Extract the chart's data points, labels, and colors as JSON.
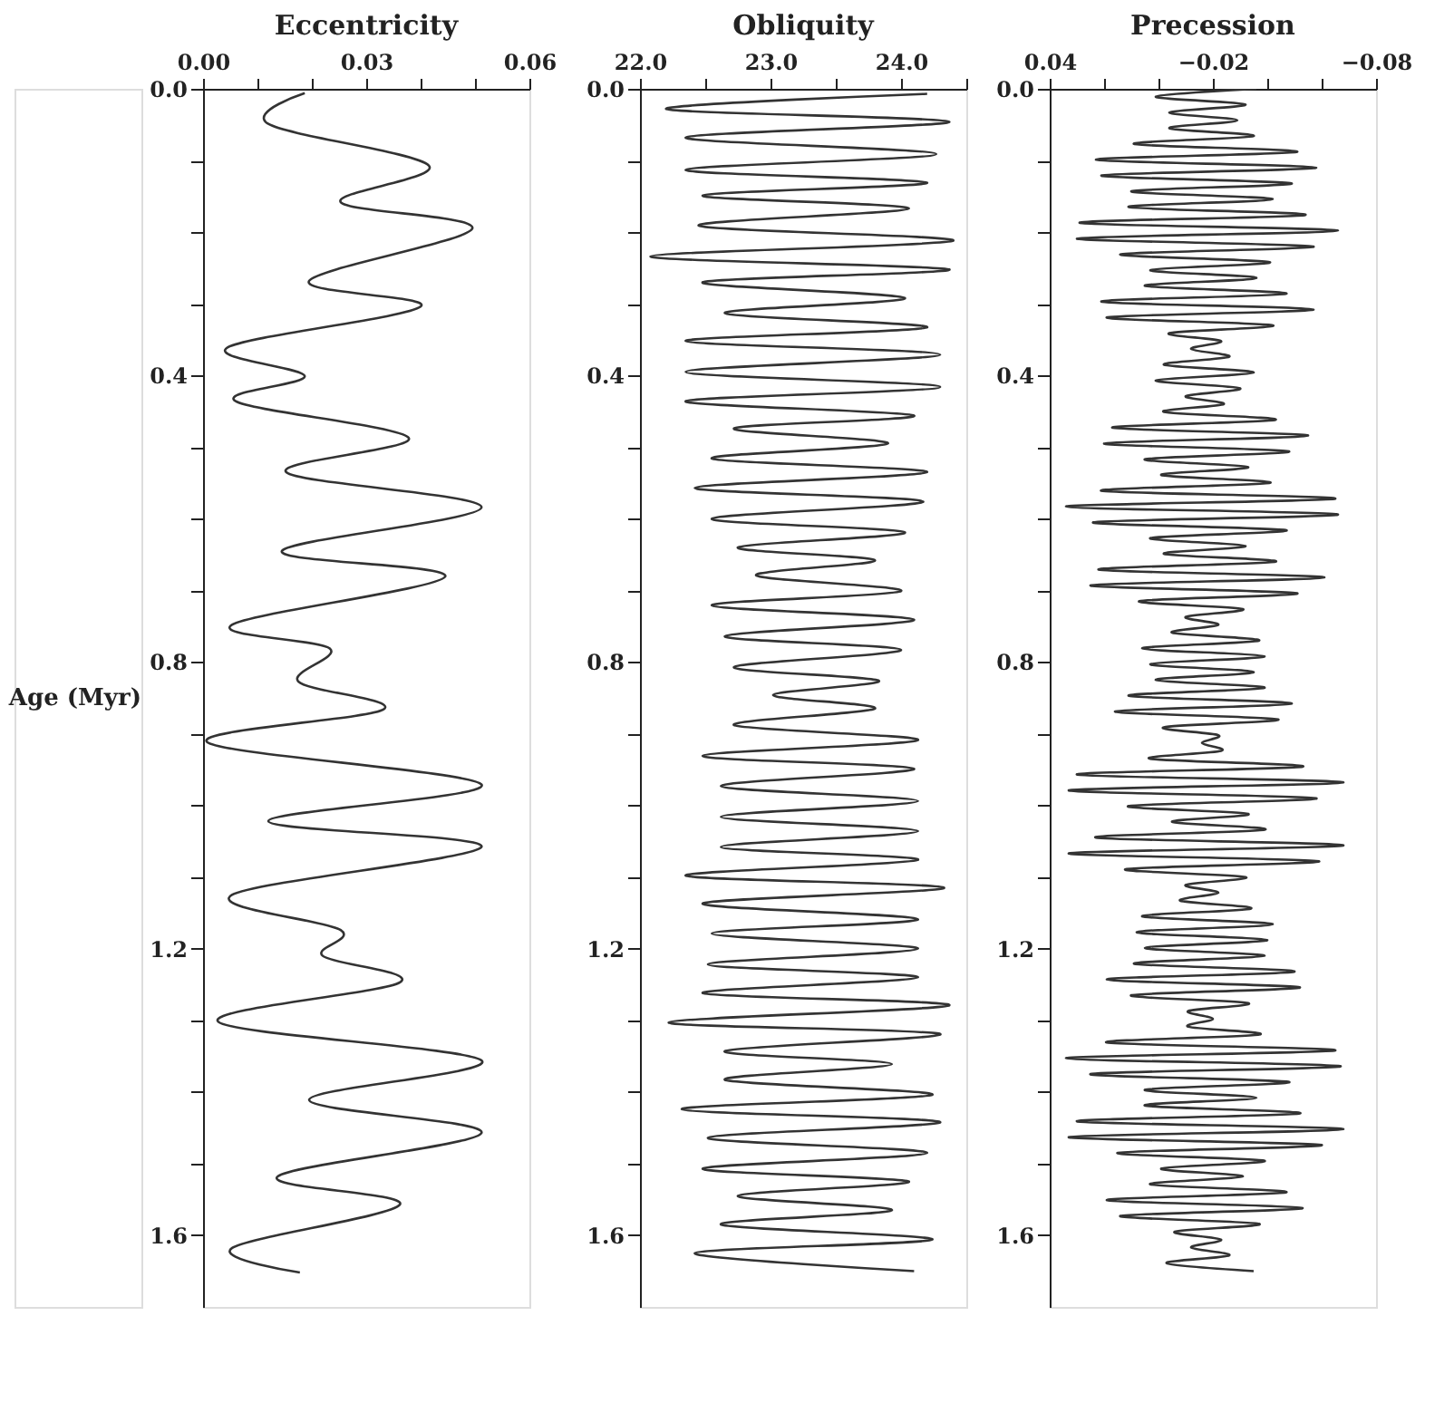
{
  "chart_data": [
    {
      "type": "line",
      "title": "Eccentricity",
      "ylabel": "Age (Myr)",
      "xlim": [
        0.0,
        0.06
      ],
      "xticks": [
        {
          "value": 0.0,
          "label": "0.00"
        },
        {
          "value": 0.01,
          "label": null
        },
        {
          "value": 0.02,
          "label": null
        },
        {
          "value": 0.03,
          "label": "0.03"
        },
        {
          "value": 0.04,
          "label": null
        },
        {
          "value": 0.05,
          "label": null
        },
        {
          "value": 0.06,
          "label": "0.06"
        }
      ],
      "ylim": [
        1.7,
        0.0
      ],
      "yticks": [
        {
          "value": 0.0,
          "label": "0.0"
        },
        {
          "value": 0.1,
          "label": null
        },
        {
          "value": 0.2,
          "label": null
        },
        {
          "value": 0.3,
          "label": null
        },
        {
          "value": 0.4,
          "label": "0.4"
        },
        {
          "value": 0.5,
          "label": null
        },
        {
          "value": 0.6,
          "label": null
        },
        {
          "value": 0.7,
          "label": null
        },
        {
          "value": 0.8,
          "label": "0.8"
        },
        {
          "value": 0.9,
          "label": null
        },
        {
          "value": 1.0,
          "label": null
        },
        {
          "value": 1.1,
          "label": null
        },
        {
          "value": 1.2,
          "label": "1.2"
        },
        {
          "value": 1.3,
          "label": null
        },
        {
          "value": 1.4,
          "label": null
        },
        {
          "value": 1.5,
          "label": null
        },
        {
          "value": 1.6,
          "label": "1.6"
        }
      ],
      "grid": false,
      "series": [
        {
          "color": "#333333",
          "x": [
            0.0187,
            0.012,
            0.0415,
            0.0253,
            0.0495,
            0.0195,
            0.04,
            0.0045,
            0.0187,
            0.006,
            0.0378,
            0.0153,
            0.0512,
            0.0145,
            0.0445,
            0.0053,
            0.0233,
            0.0175,
            0.0332,
            0.0008,
            0.0512,
            0.012,
            0.0512,
            0.0053,
            0.0253,
            0.022,
            0.0362,
            0.0028,
            0.0512,
            0.0195,
            0.0512,
            0.0137,
            0.0362,
            0.0053,
            0.0178
          ],
          "values": [
            0.006,
            0.049,
            0.107,
            0.158,
            0.195,
            0.268,
            0.304,
            0.361,
            0.401,
            0.436,
            0.487,
            0.535,
            0.584,
            0.645,
            0.681,
            0.748,
            0.781,
            0.827,
            0.866,
            0.912,
            0.971,
            1.022,
            1.058,
            1.125,
            1.174,
            1.21,
            1.247,
            1.302,
            1.356,
            1.411,
            1.457,
            1.518,
            1.557,
            1.618,
            1.652
          ]
        }
      ]
    },
    {
      "type": "line",
      "title": "Obliquity",
      "xlim": [
        22.0,
        24.5
      ],
      "xticks": [
        {
          "value": 22.0,
          "label": "22.0"
        },
        {
          "value": 22.5,
          "label": null
        },
        {
          "value": 23.0,
          "label": "23.0"
        },
        {
          "value": 23.5,
          "label": null
        },
        {
          "value": 24.0,
          "label": "24.0"
        },
        {
          "value": 24.5,
          "label": null
        }
      ],
      "ylim": [
        1.7,
        0.0
      ],
      "yticks": [
        {
          "value": 0.0,
          "label": "0.0"
        },
        {
          "value": 0.1,
          "label": null
        },
        {
          "value": 0.2,
          "label": null
        },
        {
          "value": 0.3,
          "label": null
        },
        {
          "value": 0.4,
          "label": "0.4"
        },
        {
          "value": 0.5,
          "label": null
        },
        {
          "value": 0.6,
          "label": null
        },
        {
          "value": 0.7,
          "label": null
        },
        {
          "value": 0.8,
          "label": "0.8"
        },
        {
          "value": 0.9,
          "label": null
        },
        {
          "value": 1.0,
          "label": null
        },
        {
          "value": 1.1,
          "label": null
        },
        {
          "value": 1.2,
          "label": "1.2"
        },
        {
          "value": 1.3,
          "label": null
        },
        {
          "value": 1.4,
          "label": null
        },
        {
          "value": 1.5,
          "label": null
        },
        {
          "value": 1.6,
          "label": "1.6"
        }
      ],
      "grid": false,
      "series": [
        {
          "color": "#333333",
          "x": [
            24.2,
            22.2,
            24.37,
            22.35,
            24.27,
            22.35,
            24.2,
            22.48,
            24.06,
            22.45,
            24.4,
            22.08,
            24.37,
            22.48,
            24.03,
            22.65,
            24.2,
            22.35,
            24.3,
            22.35,
            24.3,
            22.35,
            24.1,
            22.72,
            23.9,
            22.55,
            24.2,
            22.42,
            24.17,
            22.55,
            24.03,
            22.75,
            23.8,
            22.89,
            24.0,
            22.55,
            24.1,
            22.65,
            24.0,
            22.72,
            23.83,
            23.02,
            23.8,
            22.72,
            24.13,
            22.48,
            24.1,
            22.62,
            24.13,
            22.62,
            24.13,
            22.62,
            24.13,
            22.35,
            24.33,
            22.48,
            24.13,
            22.55,
            24.13,
            22.52,
            24.13,
            22.48,
            24.37,
            22.22,
            24.3,
            22.65,
            23.93,
            22.65,
            24.24,
            22.32,
            24.3,
            22.52,
            24.2,
            22.48,
            24.06,
            22.75,
            23.93,
            22.62,
            24.24,
            22.42,
            24.1
          ],
          "values": [
            0.007,
            0.028,
            0.046,
            0.068,
            0.091,
            0.113,
            0.131,
            0.149,
            0.167,
            0.191,
            0.212,
            0.234,
            0.252,
            0.27,
            0.292,
            0.313,
            0.333,
            0.352,
            0.371,
            0.395,
            0.416,
            0.436,
            0.456,
            0.474,
            0.495,
            0.516,
            0.535,
            0.557,
            0.576,
            0.6,
            0.619,
            0.64,
            0.658,
            0.679,
            0.701,
            0.721,
            0.741,
            0.764,
            0.783,
            0.807,
            0.826,
            0.846,
            0.865,
            0.888,
            0.909,
            0.931,
            0.949,
            0.973,
            0.994,
            1.016,
            1.036,
            1.058,
            1.076,
            1.098,
            1.115,
            1.137,
            1.159,
            1.179,
            1.2,
            1.222,
            1.24,
            1.262,
            1.279,
            1.303,
            1.319,
            1.343,
            1.361,
            1.383,
            1.404,
            1.424,
            1.442,
            1.464,
            1.485,
            1.507,
            1.525,
            1.545,
            1.565,
            1.585,
            1.606,
            1.625,
            1.65
          ]
        }
      ]
    },
    {
      "type": "line",
      "title": "Precession",
      "xlim": [
        0.04,
        -0.08
      ],
      "xticks": [
        {
          "value": 0.04,
          "label": "0.04"
        },
        {
          "value": 0.02,
          "label": null
        },
        {
          "value": 0.0,
          "label": null
        },
        {
          "value": -0.02,
          "label": "−0.02"
        },
        {
          "value": -0.04,
          "label": null
        },
        {
          "value": -0.06,
          "label": null
        },
        {
          "value": -0.08,
          "label": "−0.08"
        }
      ],
      "ylim": [
        1.7,
        0.0
      ],
      "yticks": [
        {
          "value": 0.0,
          "label": "0.0"
        },
        {
          "value": 0.1,
          "label": null
        },
        {
          "value": 0.2,
          "label": null
        },
        {
          "value": 0.3,
          "label": null
        },
        {
          "value": 0.4,
          "label": "0.4"
        },
        {
          "value": 0.5,
          "label": null
        },
        {
          "value": 0.6,
          "label": null
        },
        {
          "value": 0.7,
          "label": null
        },
        {
          "value": 0.8,
          "label": "0.8"
        },
        {
          "value": 0.9,
          "label": null
        },
        {
          "value": 1.0,
          "label": null
        },
        {
          "value": 1.1,
          "label": null
        },
        {
          "value": 1.2,
          "label": "1.2"
        },
        {
          "value": 1.3,
          "label": null
        },
        {
          "value": 1.4,
          "label": null
        },
        {
          "value": 1.5,
          "label": null
        },
        {
          "value": 1.6,
          "label": "1.6"
        }
      ],
      "grid": false,
      "series": [
        {
          "color": "#333333",
          "x": [
            -0.036,
            0.001,
            -0.032,
            -0.004,
            -0.029,
            -0.004,
            -0.035,
            0.009,
            -0.051,
            0.023,
            -0.058,
            0.021,
            -0.049,
            0.01,
            -0.042,
            0.011,
            -0.054,
            0.029,
            -0.066,
            0.03,
            -0.057,
            0.014,
            -0.041,
            0.003,
            -0.036,
            0.005,
            -0.047,
            0.021,
            -0.057,
            0.019,
            -0.042,
            -0.004,
            -0.023,
            -0.012,
            -0.026,
            -0.002,
            -0.035,
            0.001,
            -0.03,
            -0.01,
            -0.024,
            -0.002,
            -0.043,
            0.017,
            -0.055,
            0.02,
            -0.048,
            0.005,
            -0.033,
            -0.001,
            -0.041,
            0.021,
            -0.065,
            0.034,
            -0.066,
            0.024,
            -0.047,
            0.003,
            -0.032,
            -0.002,
            -0.043,
            0.022,
            -0.061,
            0.025,
            -0.051,
            0.007,
            -0.031,
            -0.01,
            -0.022,
            -0.005,
            -0.037,
            0.006,
            -0.039,
            0.003,
            -0.035,
            0.001,
            -0.039,
            0.011,
            -0.049,
            0.016,
            -0.044,
            -0.002,
            -0.022,
            -0.016,
            -0.023,
            0.003,
            -0.053,
            0.03,
            -0.068,
            0.033,
            -0.058,
            0.011,
            -0.033,
            -0.005,
            -0.039,
            0.023,
            -0.068,
            0.033,
            -0.059,
            0.012,
            -0.032,
            -0.01,
            -0.022,
            -0.008,
            -0.034,
            0.006,
            -0.042,
            0.008,
            -0.04,
            0.005,
            -0.039,
            0.009,
            -0.05,
            0.019,
            -0.052,
            0.01,
            -0.033,
            -0.011,
            -0.02,
            -0.011,
            -0.037,
            0.019,
            -0.065,
            0.034,
            -0.067,
            0.025,
            -0.048,
            0.005,
            -0.036,
            0.005,
            -0.052,
            0.03,
            -0.068,
            0.033,
            -0.06,
            0.015,
            -0.039,
            -0.001,
            -0.031,
            0.003,
            -0.047,
            0.019,
            -0.053,
            0.014,
            -0.037,
            -0.006,
            -0.023,
            -0.012,
            -0.026,
            -0.003,
            -0.035
          ],
          "values": [
            0.0,
            0.011,
            0.022,
            0.033,
            0.044,
            0.055,
            0.066,
            0.077,
            0.088,
            0.099,
            0.11,
            0.121,
            0.132,
            0.143,
            0.154,
            0.165,
            0.176,
            0.187,
            0.198,
            0.209,
            0.22,
            0.231,
            0.242,
            0.253,
            0.264,
            0.275,
            0.286,
            0.297,
            0.308,
            0.319,
            0.33,
            0.341,
            0.352,
            0.363,
            0.374,
            0.385,
            0.396,
            0.407,
            0.418,
            0.429,
            0.44,
            0.451,
            0.462,
            0.473,
            0.484,
            0.495,
            0.506,
            0.517,
            0.528,
            0.539,
            0.55,
            0.561,
            0.572,
            0.583,
            0.594,
            0.605,
            0.616,
            0.627,
            0.638,
            0.649,
            0.66,
            0.671,
            0.682,
            0.693,
            0.704,
            0.715,
            0.726,
            0.737,
            0.748,
            0.759,
            0.77,
            0.781,
            0.792,
            0.803,
            0.814,
            0.825,
            0.836,
            0.847,
            0.858,
            0.869,
            0.88,
            0.891,
            0.902,
            0.913,
            0.924,
            0.935,
            0.946,
            0.957,
            0.968,
            0.979,
            0.99,
            1.001,
            1.012,
            1.023,
            1.034,
            1.045,
            1.056,
            1.067,
            1.078,
            1.089,
            1.1,
            1.111,
            1.122,
            1.133,
            1.144,
            1.155,
            1.166,
            1.177,
            1.188,
            1.199,
            1.21,
            1.221,
            1.232,
            1.243,
            1.254,
            1.265,
            1.276,
            1.287,
            1.298,
            1.309,
            1.32,
            1.331,
            1.342,
            1.353,
            1.364,
            1.375,
            1.386,
            1.397,
            1.408,
            1.419,
            1.43,
            1.441,
            1.452,
            1.463,
            1.474,
            1.485,
            1.496,
            1.507,
            1.518,
            1.529,
            1.54,
            1.551,
            1.562,
            1.573,
            1.584,
            1.595,
            1.606,
            1.617,
            1.628,
            1.639,
            1.65
          ]
        }
      ]
    }
  ]
}
